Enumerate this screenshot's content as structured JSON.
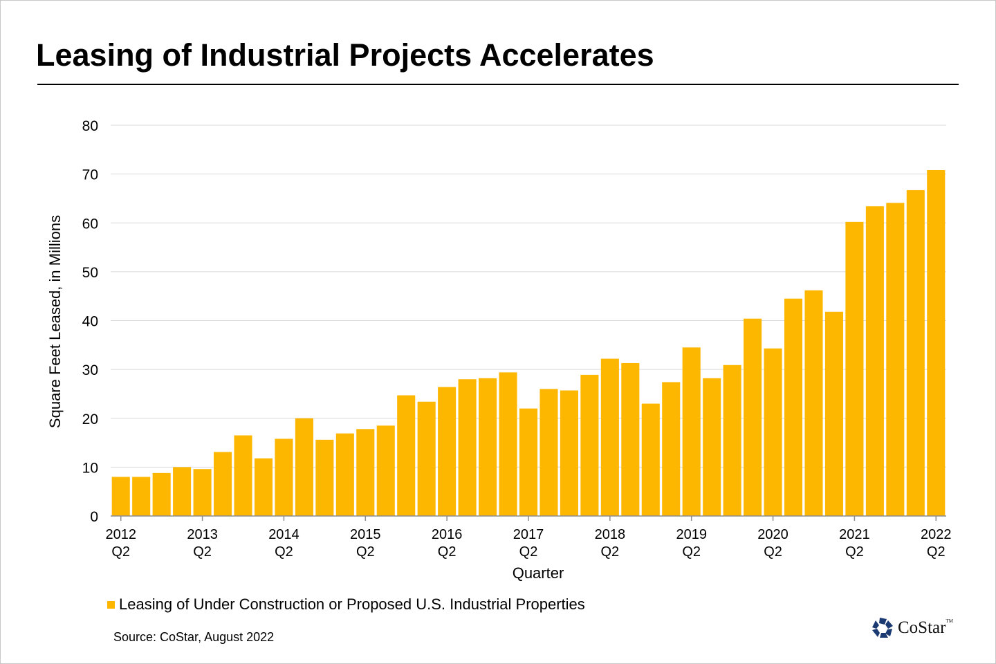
{
  "chart_data": {
    "type": "bar",
    "title": "Leasing of Industrial Projects Accelerates",
    "xlabel": "Quarter",
    "ylabel": "Square Feet Leased, in Millions",
    "ylim": [
      0,
      80
    ],
    "yticks": [
      0,
      10,
      20,
      30,
      40,
      50,
      60,
      70,
      80
    ],
    "grid": true,
    "legend_placement": "bottom-left",
    "bar_color": "#FDB700",
    "categories": [
      "2012 Q2",
      "2012 Q3",
      "2012 Q4",
      "2013 Q1",
      "2013 Q2",
      "2013 Q3",
      "2013 Q4",
      "2014 Q1",
      "2014 Q2",
      "2014 Q3",
      "2014 Q4",
      "2015 Q1",
      "2015 Q2",
      "2015 Q3",
      "2015 Q4",
      "2016 Q1",
      "2016 Q2",
      "2016 Q3",
      "2016 Q4",
      "2017 Q1",
      "2017 Q2",
      "2017 Q3",
      "2017 Q4",
      "2018 Q1",
      "2018 Q2",
      "2018 Q3",
      "2018 Q4",
      "2019 Q1",
      "2019 Q2",
      "2019 Q3",
      "2019 Q4",
      "2020 Q1",
      "2020 Q2",
      "2020 Q3",
      "2020 Q4",
      "2021 Q1",
      "2021 Q2",
      "2021 Q3",
      "2021 Q4",
      "2022 Q1",
      "2022 Q2"
    ],
    "tick_labels": [
      {
        "index": 0,
        "year": "2012",
        "q": "Q2"
      },
      {
        "index": 4,
        "year": "2013",
        "q": "Q2"
      },
      {
        "index": 8,
        "year": "2014",
        "q": "Q2"
      },
      {
        "index": 12,
        "year": "2015",
        "q": "Q2"
      },
      {
        "index": 16,
        "year": "2016",
        "q": "Q2"
      },
      {
        "index": 20,
        "year": "2017",
        "q": "Q2"
      },
      {
        "index": 24,
        "year": "2018",
        "q": "Q2"
      },
      {
        "index": 28,
        "year": "2019",
        "q": "Q2"
      },
      {
        "index": 32,
        "year": "2020",
        "q": "Q2"
      },
      {
        "index": 36,
        "year": "2021",
        "q": "Q2"
      },
      {
        "index": 40,
        "year": "2022",
        "q": "Q2"
      }
    ],
    "series": [
      {
        "name": "Leasing of Under Construction or Proposed U.S. Industrial Properties",
        "values": [
          8,
          8,
          8.8,
          10,
          9.6,
          13.1,
          16.5,
          11.8,
          15.8,
          20,
          15.6,
          16.9,
          17.8,
          18.5,
          24.7,
          23.4,
          26.4,
          28,
          28.2,
          29.4,
          22,
          26,
          25.7,
          28.9,
          32.2,
          31.3,
          23,
          27.4,
          34.5,
          28.2,
          30.9,
          40.4,
          34.3,
          44.5,
          46.2,
          41.8,
          60.2,
          63.4,
          64.1,
          66.7,
          70.8
        ]
      }
    ]
  },
  "source": "Source: CoStar, August 2022",
  "logo": {
    "text": "CoStar",
    "tm": "TM",
    "color": "#1B3A72"
  }
}
